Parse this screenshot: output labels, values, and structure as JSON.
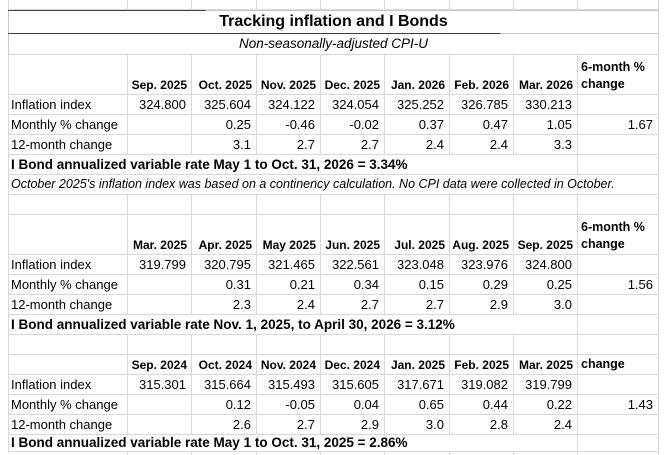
{
  "sheet": {
    "title": "Tracking inflation and I Bonds",
    "subtitle": "Non-seasonally-adjusted CPI-U"
  },
  "tables": [
    {
      "last_col_header": "6-month % change",
      "months": [
        "Sep. 2025",
        "Oct. 2025",
        "Nov. 2025",
        "Dec. 2025",
        "Jan. 2026",
        "Feb. 2026",
        "Mar. 2026"
      ],
      "rows": [
        {
          "label": "Inflation index",
          "values": [
            "324.800",
            "325.604",
            "324.122",
            "324.054",
            "325.252",
            "326.785",
            "330.213"
          ],
          "last": ""
        },
        {
          "label": "Monthly % change",
          "values": [
            "",
            "0.25",
            "-0.46",
            "-0.02",
            "0.37",
            "0.47",
            "1.05"
          ],
          "last": "1.67"
        },
        {
          "label": "12-month change",
          "values": [
            "",
            "3.1",
            "2.7",
            "2.7",
            "2.4",
            "2.4",
            "3.3"
          ],
          "last": ""
        }
      ],
      "footer": "I Bond annualized variable rate May 1 to Oct. 31, 2026 = 3.34%",
      "note": "October 2025's inflation index was based on a continency calculation. No CPI data were collected in October."
    },
    {
      "last_col_header": "6-month % change",
      "months": [
        "Mar. 2025",
        "Apr. 2025",
        "May 2025",
        "Jun. 2025",
        "Jul. 2025",
        "Aug. 2025",
        "Sep. 2025"
      ],
      "rows": [
        {
          "label": "Inflation index",
          "values": [
            "319.799",
            "320.795",
            "321.465",
            "322.561",
            "323.048",
            "323.976",
            "324.800"
          ],
          "last": ""
        },
        {
          "label": "Monthly % change",
          "values": [
            "",
            "0.31",
            "0.21",
            "0.34",
            "0.15",
            "0.29",
            "0.25"
          ],
          "last": "1.56"
        },
        {
          "label": "12-month change",
          "values": [
            "",
            "2.3",
            "2.4",
            "2.7",
            "2.7",
            "2.9",
            "3.0"
          ],
          "last": ""
        }
      ],
      "footer": "I Bond annualized variable rate Nov. 1, 2025, to April 30, 2026 = 3.12%",
      "note": ""
    },
    {
      "last_col_header": "change",
      "months": [
        "Sep. 2024",
        "Oct. 2024",
        "Nov. 2024",
        "Dec. 2024",
        "Jan. 2025",
        "Feb. 2025",
        "Mar. 2025"
      ],
      "rows": [
        {
          "label": "Inflation index",
          "values": [
            "315.301",
            "315.664",
            "315.493",
            "315.605",
            "317.671",
            "319.082",
            "319.799"
          ],
          "last": ""
        },
        {
          "label": "Monthly % change",
          "values": [
            "",
            "0.12",
            "-0.05",
            "0.04",
            "0.65",
            "0.44",
            "0.22"
          ],
          "last": "1.43"
        },
        {
          "label": "12-month change",
          "values": [
            "",
            "2.6",
            "2.7",
            "2.9",
            "3.0",
            "2.8",
            "2.4"
          ],
          "last": ""
        }
      ],
      "footer": "I Bond annualized variable rate May 1 to Oct. 31, 2025 = 2.86%",
      "note": ""
    }
  ]
}
